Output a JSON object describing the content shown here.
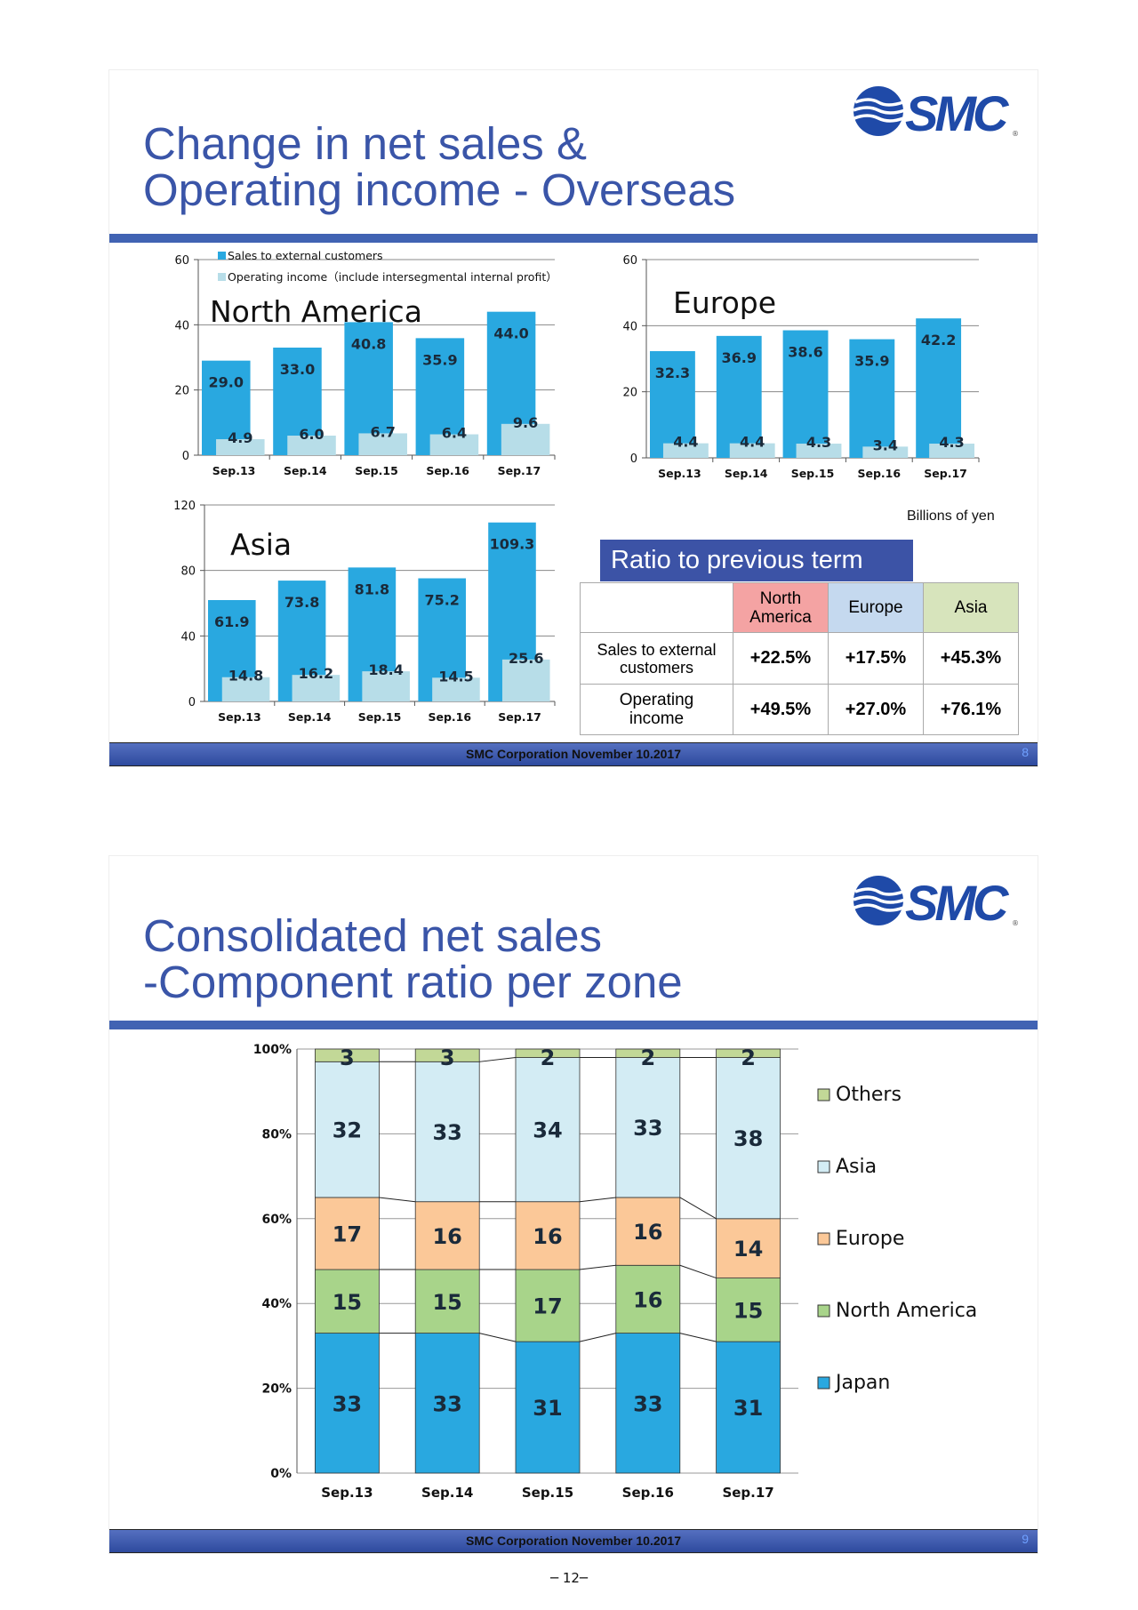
{
  "logo": {
    "text": "SMC",
    "color": "#1f4aa8"
  },
  "slide1": {
    "title_line1": "Change in net sales &",
    "title_line2": "Operating income - Overseas",
    "footer": "SMC  Corporation  November 10.2017",
    "page": "8",
    "unit": "Billions of yen",
    "ratio": {
      "heading": "Ratio to previous term",
      "columns": [
        "North America",
        "Europe",
        "Asia"
      ],
      "column_colors": [
        "#f4a3a3",
        "#c5d9ef",
        "#d7e4bc"
      ],
      "rows": [
        {
          "label": "Sales to external customers",
          "values": [
            "+22.5%",
            "+17.5%",
            "+45.3%"
          ]
        },
        {
          "label": "Operating income",
          "values": [
            "+49.5%",
            "+27.0%",
            "+76.1%"
          ]
        }
      ]
    }
  },
  "slide2": {
    "title_line1": "Consolidated net sales",
    "title_line2": "-Component ratio per zone",
    "footer": "SMC  Corporation  November 10.2017",
    "page": "9"
  },
  "page_number": "─ 12─",
  "chart_data": [
    {
      "type": "bar",
      "title": "North  America",
      "categories": [
        "Sep.13",
        "Sep.14",
        "Sep.15",
        "Sep.16",
        "Sep.17"
      ],
      "ylim": [
        0,
        60
      ],
      "yticks": [
        0,
        20,
        40,
        60
      ],
      "legend": "top-left",
      "series": [
        {
          "name": "Sales to external customers",
          "color": "#29a8e0",
          "values": [
            29.0,
            33.0,
            40.8,
            35.9,
            44.0
          ],
          "labels": [
            "29.0",
            "33.0",
            "40.8",
            "35.9",
            "44.0"
          ]
        },
        {
          "name": "Operating income（include intersegmental internal profit）",
          "color": "#b7dde8",
          "values": [
            4.9,
            6.0,
            6.7,
            6.4,
            9.6
          ],
          "labels": [
            "4.9",
            "6.0",
            "6.7",
            "6.4",
            "9.6"
          ]
        }
      ]
    },
    {
      "type": "bar",
      "title": "Europe",
      "categories": [
        "Sep.13",
        "Sep.14",
        "Sep.15",
        "Sep.16",
        "Sep.17"
      ],
      "ylim": [
        0,
        60
      ],
      "yticks": [
        0,
        20,
        40,
        60
      ],
      "series": [
        {
          "color": "#29a8e0",
          "values": [
            32.3,
            36.9,
            38.6,
            35.9,
            42.2
          ],
          "labels": [
            "32.3",
            "36.9",
            "38.6",
            "35.9",
            "42.2"
          ]
        },
        {
          "color": "#b7dde8",
          "values": [
            4.4,
            4.4,
            4.3,
            3.4,
            4.3
          ],
          "labels": [
            "4.4",
            "4.4",
            "4.3",
            "3.4",
            "4.3"
          ]
        }
      ]
    },
    {
      "type": "bar",
      "title": "Asia",
      "categories": [
        "Sep.13",
        "Sep.14",
        "Sep.15",
        "Sep.16",
        "Sep.17"
      ],
      "ylim": [
        0,
        120
      ],
      "yticks": [
        0,
        40,
        80,
        120
      ],
      "series": [
        {
          "color": "#29a8e0",
          "values": [
            61.9,
            73.8,
            81.8,
            75.2,
            109.3
          ],
          "labels": [
            "61.9",
            "73.8",
            "81.8",
            "75.2",
            "109.3"
          ]
        },
        {
          "color": "#b7dde8",
          "values": [
            14.8,
            16.2,
            18.4,
            14.5,
            25.6
          ],
          "labels": [
            "14.8",
            "16.2",
            "18.4",
            "14.5",
            "25.6"
          ]
        }
      ]
    },
    {
      "type": "bar",
      "stacked": true,
      "categories": [
        "Sep.13",
        "Sep.14",
        "Sep.15",
        "Sep.16",
        "Sep.17"
      ],
      "ylim": [
        0,
        100
      ],
      "yticks": [
        "0%",
        "20%",
        "40%",
        "60%",
        "80%",
        "100%"
      ],
      "legend": "right",
      "series": [
        {
          "name": "Japan",
          "color": "#29a8e0",
          "values": [
            33,
            33,
            31,
            33,
            31
          ]
        },
        {
          "name": "North America",
          "color": "#a8d48a",
          "values": [
            15,
            15,
            17,
            16,
            15
          ]
        },
        {
          "name": "Europe",
          "color": "#fbc898",
          "values": [
            17,
            16,
            16,
            16,
            14
          ]
        },
        {
          "name": "Asia",
          "color": "#d3ecf4",
          "values": [
            32,
            33,
            34,
            33,
            38
          ]
        },
        {
          "name": "Others",
          "color": "#c2d897",
          "values": [
            3,
            3,
            2,
            2,
            2
          ]
        }
      ]
    }
  ]
}
